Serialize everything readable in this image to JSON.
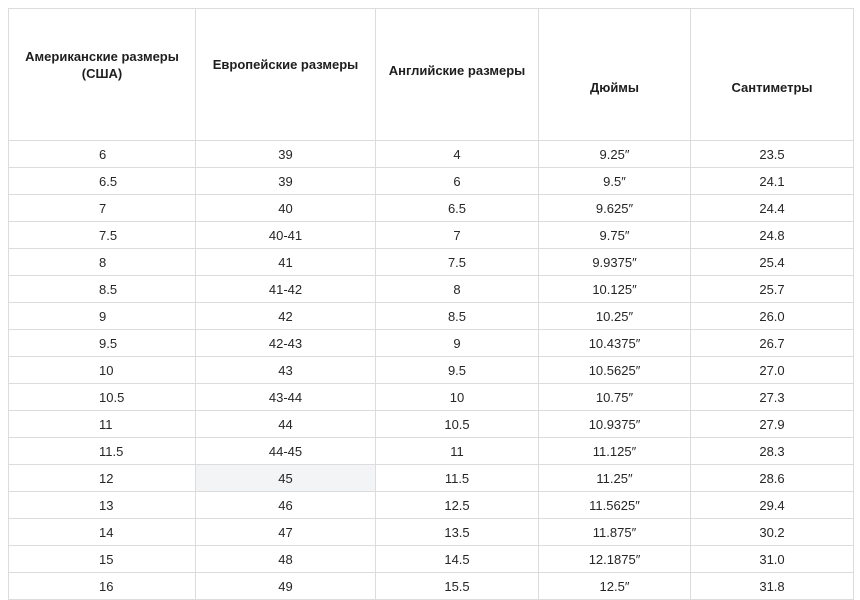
{
  "table": {
    "headers": [
      "Американские размеры (США)",
      "Европейские размеры",
      "Английские размеры",
      "Дюймы",
      "Сантиметры"
    ],
    "rows": [
      [
        "6",
        "39",
        "4",
        "9.25″",
        "23.5"
      ],
      [
        "6.5",
        "39",
        "6",
        "9.5″",
        "24.1"
      ],
      [
        "7",
        "40",
        "6.5",
        "9.625″",
        "24.4"
      ],
      [
        "7.5",
        "40-41",
        "7",
        "9.75″",
        "24.8"
      ],
      [
        "8",
        "41",
        "7.5",
        "9.9375″",
        "25.4"
      ],
      [
        "8.5",
        "41-42",
        "8",
        "10.125″",
        "25.7"
      ],
      [
        "9",
        "42",
        "8.5",
        "10.25″",
        "26.0"
      ],
      [
        "9.5",
        "42-43",
        "9",
        "10.4375″",
        "26.7"
      ],
      [
        "10",
        "43",
        "9.5",
        "10.5625″",
        "27.0"
      ],
      [
        "10.5",
        "43-44",
        "10",
        "10.75″",
        "27.3"
      ],
      [
        "11",
        "44",
        "10.5",
        "10.9375″",
        "27.9"
      ],
      [
        "11.5",
        "44-45",
        "11",
        "11.125″",
        "28.3"
      ],
      [
        "12",
        "45",
        "11.5",
        "11.25″",
        "28.6"
      ],
      [
        "13",
        "46",
        "12.5",
        "11.5625″",
        "29.4"
      ],
      [
        "14",
        "47",
        "13.5",
        "11.875″",
        "30.2"
      ],
      [
        "15",
        "48",
        "14.5",
        "12.1875″",
        "31.0"
      ],
      [
        "16",
        "49",
        "15.5",
        "12.5″",
        "31.8"
      ]
    ],
    "highlight": {
      "row": 12,
      "col": 1,
      "color": "#f3f4f6"
    }
  }
}
